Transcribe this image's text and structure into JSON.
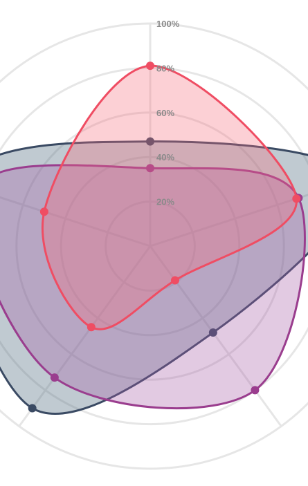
{
  "chart_data": {
    "type": "radar",
    "r_ticks": [
      "20%",
      "40%",
      "60%",
      "80%",
      "100%"
    ],
    "r_max": 100,
    "grid": true,
    "series": [
      {
        "color": "#3a4a63",
        "fill": "rgba(90,115,135,0.38)",
        "values": [
          47,
          96,
          48,
          90,
          90
        ]
      },
      {
        "color": "#9a3d8e",
        "fill": "rgba(165,90,165,0.32)",
        "values": [
          35,
          70,
          80,
          73,
          82
        ]
      },
      {
        "color": "#ef4d63",
        "fill": "rgba(245,110,125,0.32)",
        "values": [
          81,
          69,
          19,
          45,
          50
        ]
      }
    ]
  }
}
